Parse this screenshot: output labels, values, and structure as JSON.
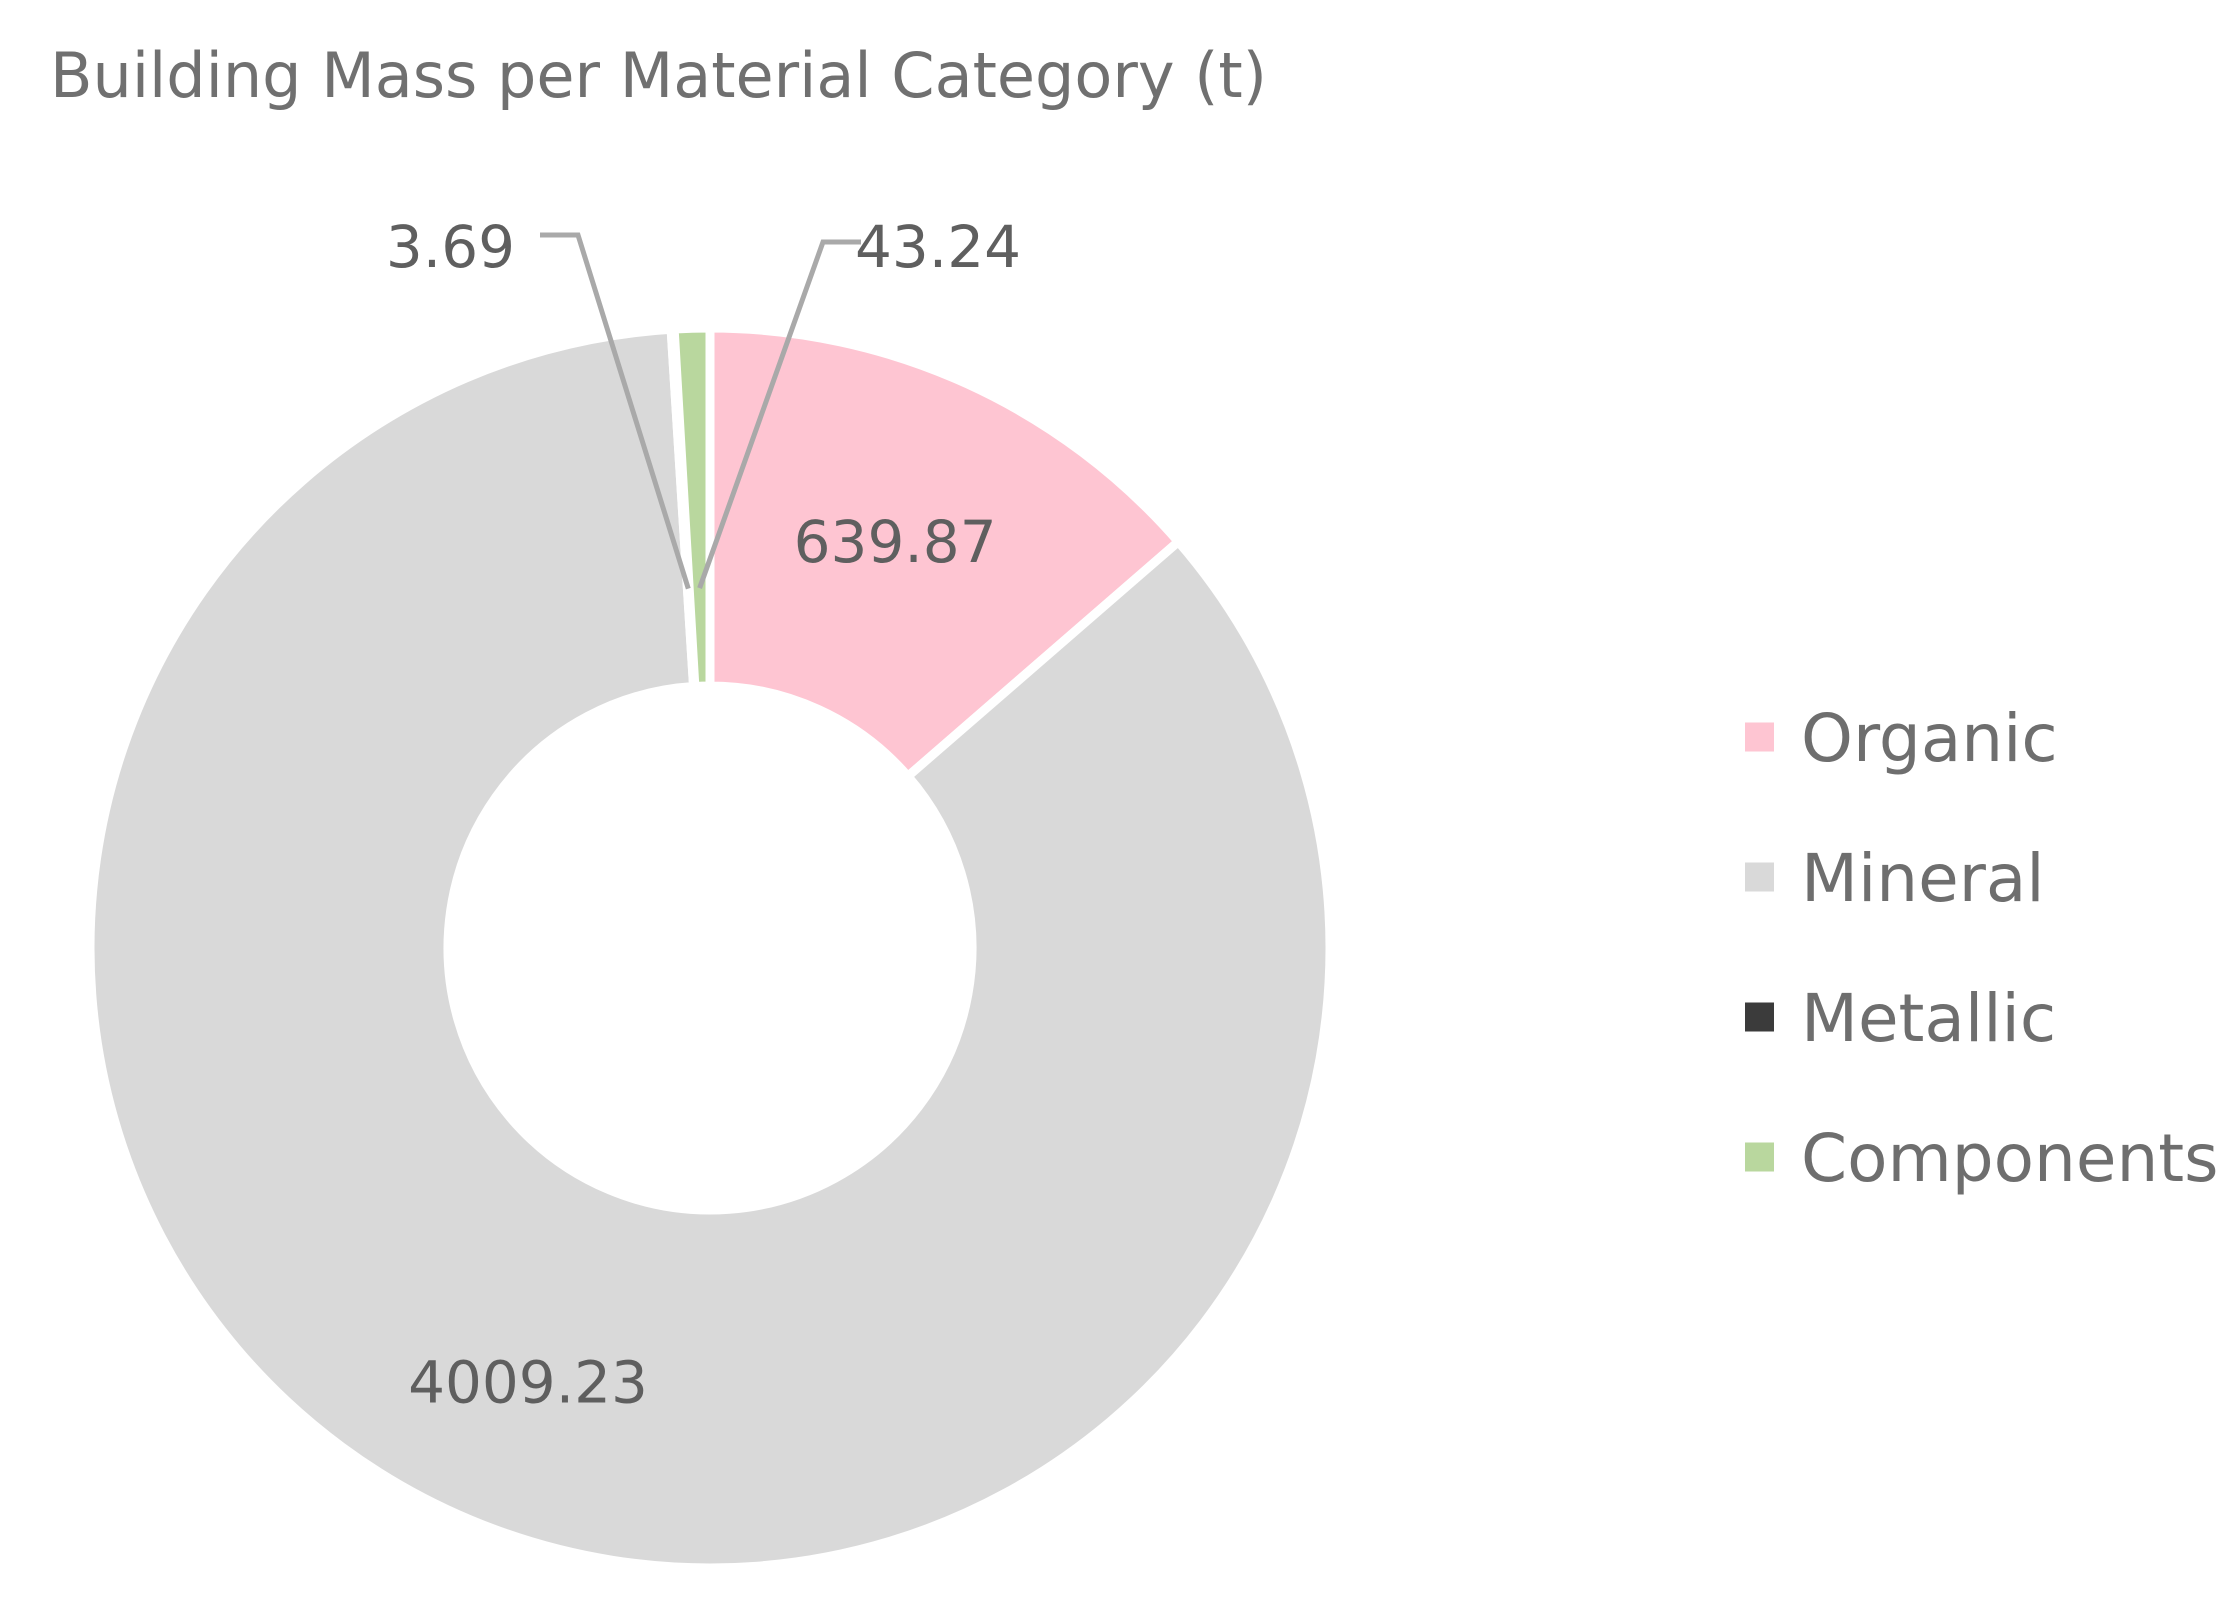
{
  "chart_data": {
    "type": "pie",
    "variant": "donut",
    "title": "Building Mass per Material Category (t)",
    "unit": "t",
    "categories": [
      "Organic",
      "Mineral",
      "Metallic",
      "Components"
    ],
    "values": [
      639.87,
      4009.23,
      3.69,
      43.24
    ],
    "data_labels": [
      "639.87",
      "4009.23",
      "3.69",
      "43.24"
    ],
    "colors": [
      "#fec5d2",
      "#d9d9d9",
      "#3b3b3b",
      "#b9d79e"
    ],
    "legend_position": "right",
    "start_angle_deg": 0,
    "direction": "clockwise"
  }
}
